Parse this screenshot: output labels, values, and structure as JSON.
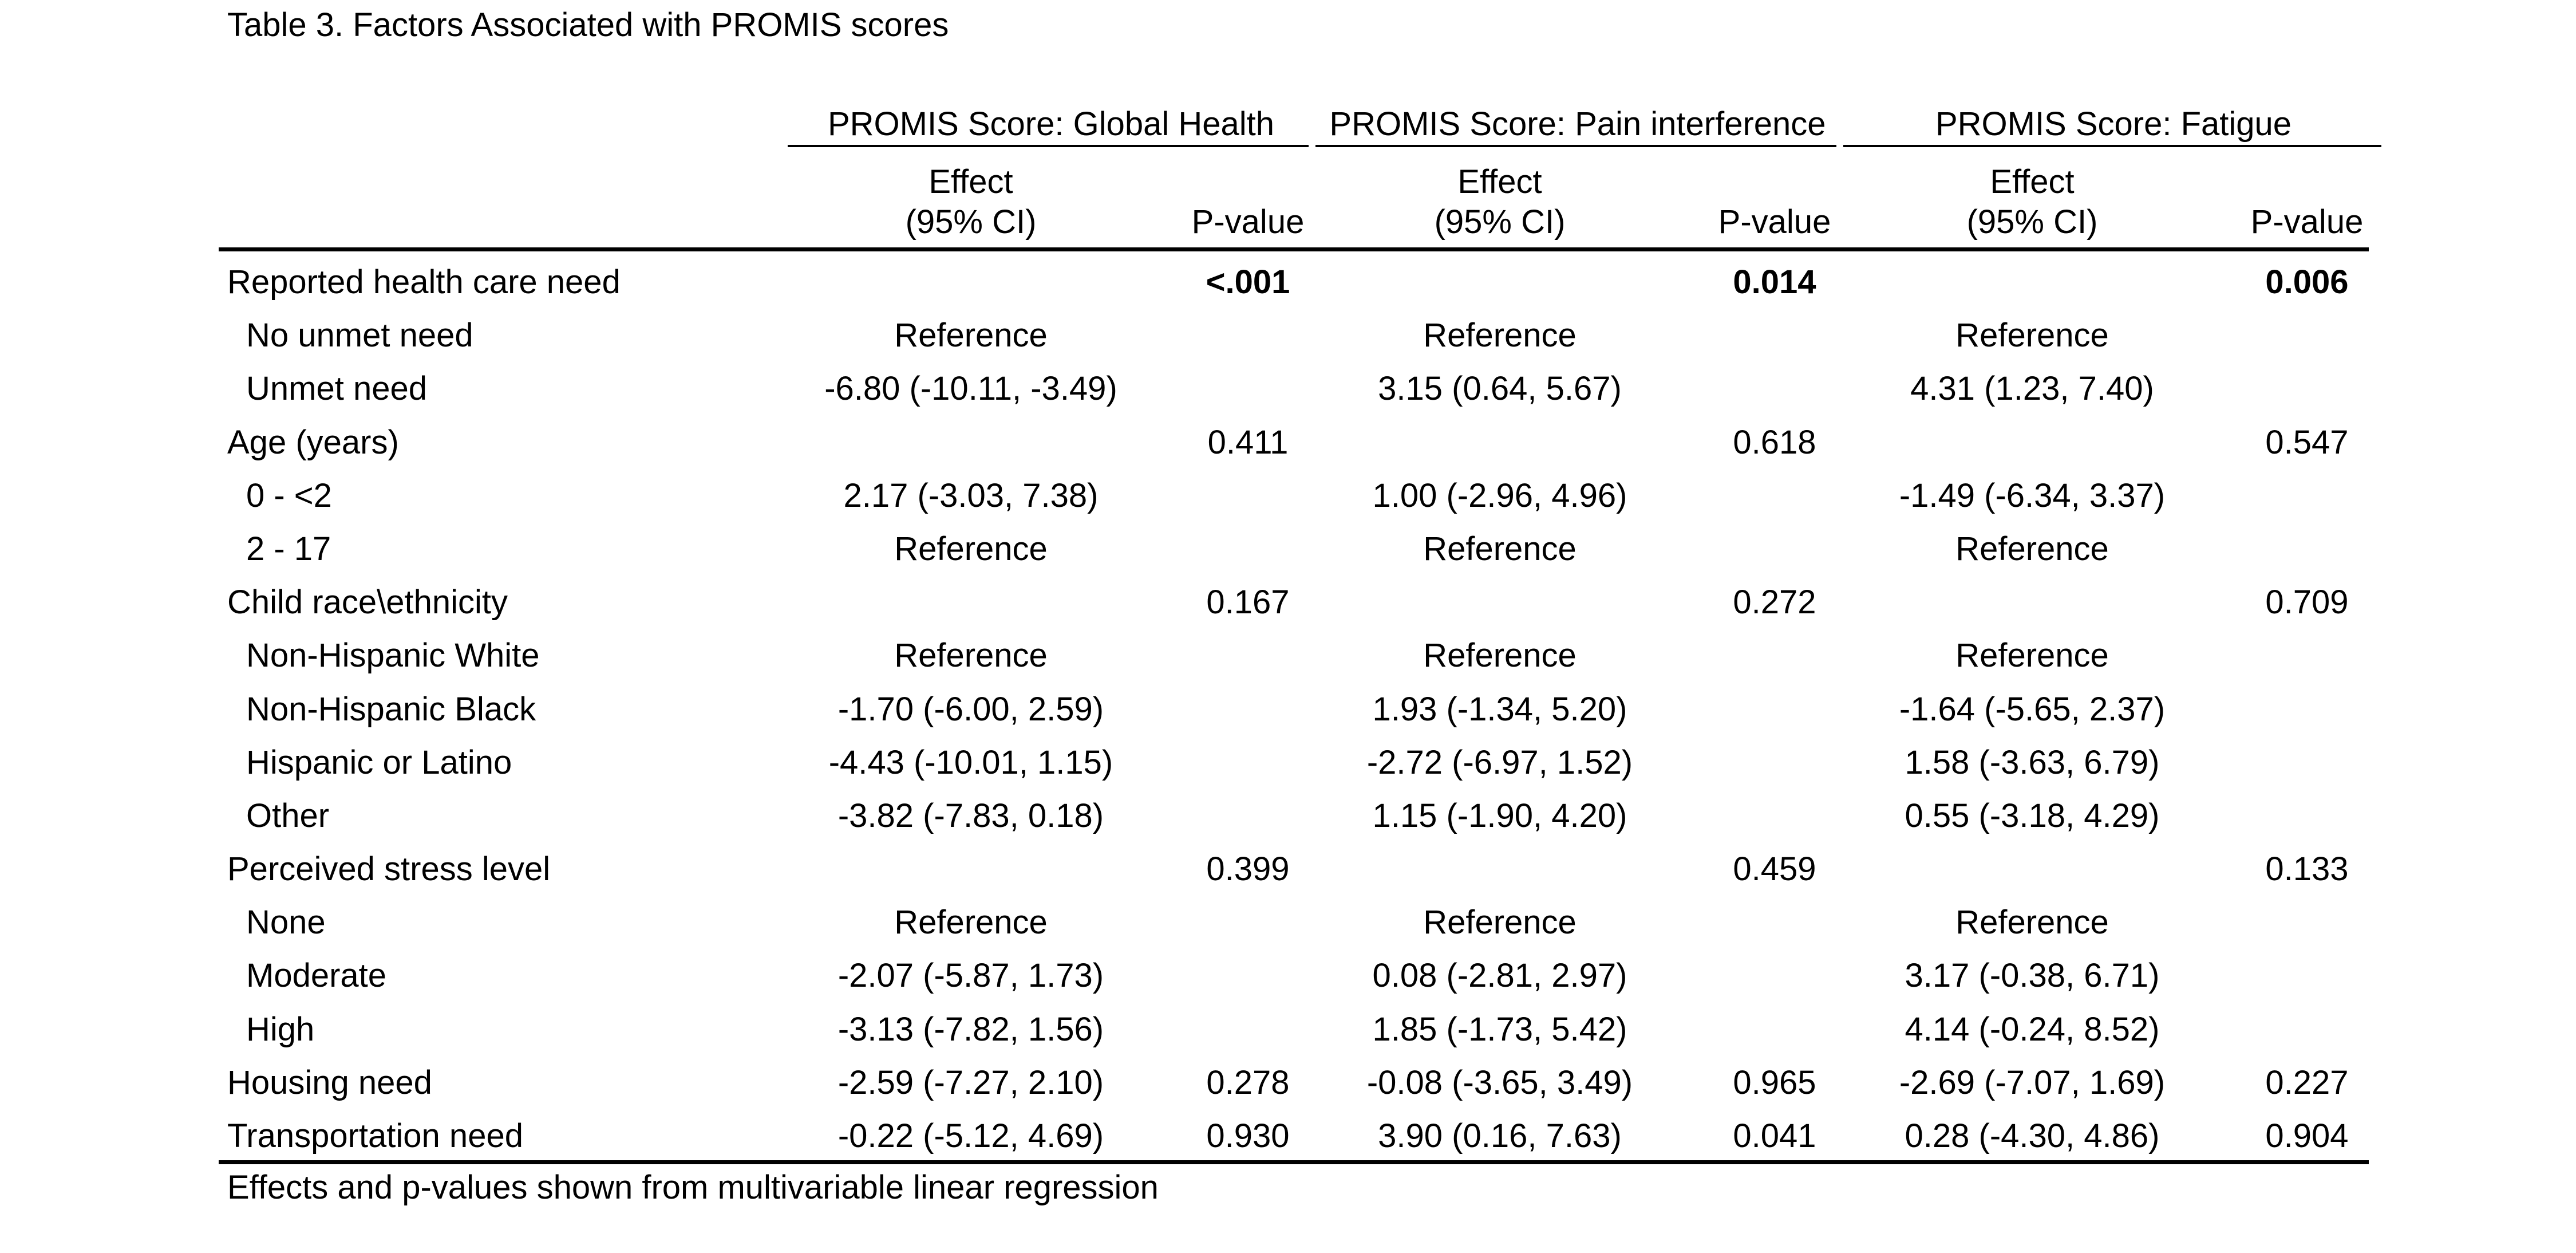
{
  "caption": "Table 3. Factors Associated with PROMIS scores",
  "groups": [
    "PROMIS Score: Global Health",
    "PROMIS Score: Pain interference",
    "PROMIS Score: Fatigue"
  ],
  "subheaders": {
    "effect_line1": "Effect",
    "effect_line2": "(95% CI)",
    "pvalue": "P-value"
  },
  "rows": [
    {
      "label": "Reported health care need",
      "level": 0,
      "e1": "",
      "p1": "<.001",
      "e2": "",
      "p2": "0.014",
      "e3": "",
      "p3": "0.006",
      "bold_p": true
    },
    {
      "label": "No unmet need",
      "level": 1,
      "e1": "Reference",
      "p1": "",
      "e2": "Reference",
      "p2": "",
      "e3": "Reference",
      "p3": ""
    },
    {
      "label": "Unmet need",
      "level": 1,
      "e1": "-6.80 (-10.11, -3.49)",
      "p1": "",
      "e2": "3.15 (0.64, 5.67)",
      "p2": "",
      "e3": "4.31 (1.23, 7.40)",
      "p3": ""
    },
    {
      "label": "Age (years)",
      "level": 0,
      "e1": "",
      "p1": "0.411",
      "e2": "",
      "p2": "0.618",
      "e3": "",
      "p3": "0.547"
    },
    {
      "label": "0 - <2",
      "level": 1,
      "e1": "2.17 (-3.03, 7.38)",
      "p1": "",
      "e2": "1.00 (-2.96, 4.96)",
      "p2": "",
      "e3": "-1.49 (-6.34, 3.37)",
      "p3": ""
    },
    {
      "label": "2 - 17",
      "level": 1,
      "e1": "Reference",
      "p1": "",
      "e2": "Reference",
      "p2": "",
      "e3": "Reference",
      "p3": ""
    },
    {
      "label": "Child race\\ethnicity",
      "level": 0,
      "e1": "",
      "p1": "0.167",
      "e2": "",
      "p2": "0.272",
      "e3": "",
      "p3": "0.709"
    },
    {
      "label": "Non-Hispanic White",
      "level": 1,
      "e1": "Reference",
      "p1": "",
      "e2": "Reference",
      "p2": "",
      "e3": "Reference",
      "p3": ""
    },
    {
      "label": "Non-Hispanic Black",
      "level": 1,
      "e1": "-1.70 (-6.00, 2.59)",
      "p1": "",
      "e2": "1.93 (-1.34, 5.20)",
      "p2": "",
      "e3": "-1.64 (-5.65, 2.37)",
      "p3": ""
    },
    {
      "label": "Hispanic or Latino",
      "level": 1,
      "e1": "-4.43 (-10.01, 1.15)",
      "p1": "",
      "e2": "-2.72 (-6.97, 1.52)",
      "p2": "",
      "e3": "1.58 (-3.63, 6.79)",
      "p3": ""
    },
    {
      "label": "Other",
      "level": 1,
      "e1": "-3.82 (-7.83, 0.18)",
      "p1": "",
      "e2": "1.15 (-1.90, 4.20)",
      "p2": "",
      "e3": "0.55 (-3.18, 4.29)",
      "p3": ""
    },
    {
      "label": "Perceived stress level",
      "level": 0,
      "e1": "",
      "p1": "0.399",
      "e2": "",
      "p2": "0.459",
      "e3": "",
      "p3": "0.133"
    },
    {
      "label": "None",
      "level": 1,
      "e1": "Reference",
      "p1": "",
      "e2": "Reference",
      "p2": "",
      "e3": "Reference",
      "p3": ""
    },
    {
      "label": "Moderate",
      "level": 1,
      "e1": "-2.07 (-5.87, 1.73)",
      "p1": "",
      "e2": "0.08 (-2.81, 2.97)",
      "p2": "",
      "e3": "3.17 (-0.38, 6.71)",
      "p3": ""
    },
    {
      "label": "High",
      "level": 1,
      "e1": "-3.13 (-7.82, 1.56)",
      "p1": "",
      "e2": "1.85 (-1.73, 5.42)",
      "p2": "",
      "e3": "4.14 (-0.24, 8.52)",
      "p3": ""
    },
    {
      "label": "Housing need",
      "level": 0,
      "e1": "-2.59 (-7.27, 2.10)",
      "p1": "0.278",
      "e2": "-0.08 (-3.65, 3.49)",
      "p2": "0.965",
      "e3": "-2.69 (-7.07, 1.69)",
      "p3": "0.227"
    },
    {
      "label": "Transportation need",
      "level": 0,
      "e1": "-0.22 (-5.12, 4.69)",
      "p1": "0.930",
      "e2": "3.90 (0.16, 7.63)",
      "p2": "0.041",
      "e3": "0.28 (-4.30, 4.86)",
      "p3": "0.904"
    }
  ],
  "footnote": "Effects and p-values shown from multivariable linear regression"
}
